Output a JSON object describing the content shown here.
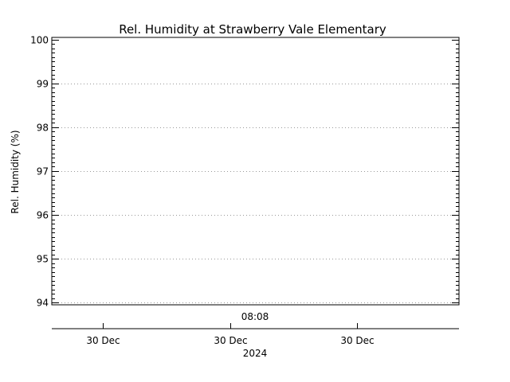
{
  "chart_data": {
    "type": "line",
    "title": "Rel. Humidity at Strawberry Vale Elementary",
    "ylabel": "Rel. Humidity (%)",
    "xlabel": "",
    "ylim": [
      93.95,
      100.05
    ],
    "y_ticks": [
      "100",
      "99",
      "98",
      "97",
      "96",
      "95",
      "94"
    ],
    "y_tick_values": [
      100,
      99,
      98,
      97,
      96,
      95,
      94
    ],
    "x_time_label": "08:08",
    "x_tick_labels": [
      "30 Dec",
      "30 Dec",
      "30 Dec"
    ],
    "x_year_label": "2024",
    "grid": true,
    "series": []
  }
}
